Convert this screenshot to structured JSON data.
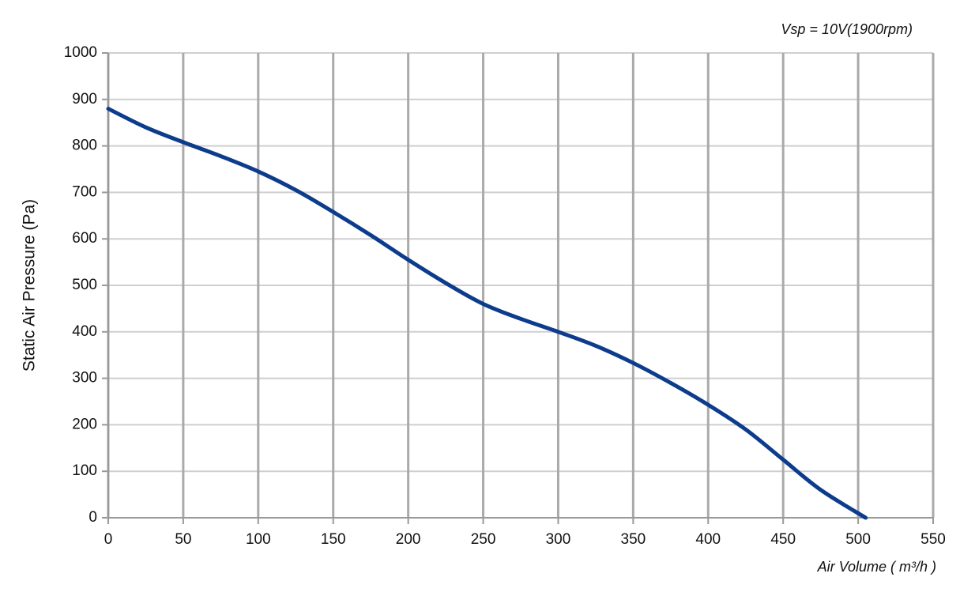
{
  "chart_data": {
    "type": "line",
    "title": "Vsp = 10V(1900rpm)",
    "x_label": "Air Volume ( m³/h )",
    "y_label": "Static Air Pressure  (Pa)",
    "x": [
      0,
      25,
      50,
      75,
      100,
      125,
      150,
      175,
      200,
      225,
      250,
      275,
      300,
      325,
      350,
      375,
      400,
      425,
      450,
      475,
      505
    ],
    "values": [
      880,
      840,
      808,
      778,
      745,
      705,
      658,
      608,
      555,
      505,
      460,
      428,
      400,
      370,
      333,
      290,
      243,
      190,
      125,
      60,
      0
    ],
    "color": "#0d3c8c",
    "xlim": [
      0,
      550
    ],
    "xticks": [
      0,
      50,
      100,
      150,
      200,
      250,
      300,
      350,
      400,
      450,
      500,
      550
    ],
    "ylim": [
      0,
      1000
    ],
    "yticks": [
      0,
      100,
      200,
      300,
      400,
      500,
      600,
      700,
      800,
      900,
      1000
    ],
    "grid": true
  }
}
